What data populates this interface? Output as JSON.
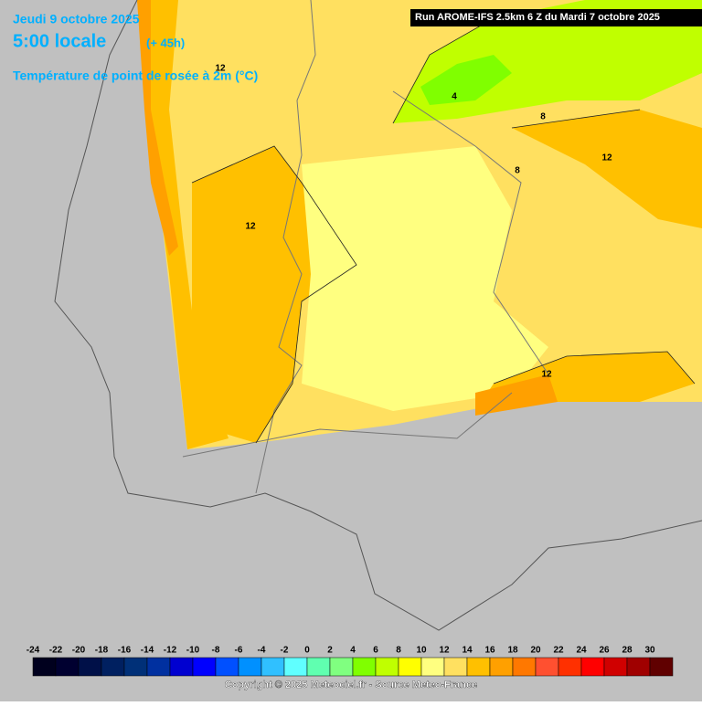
{
  "header": {
    "date": "Jeudi 9 octobre 2025",
    "time": "5:00 locale",
    "lead": "(+ 45h)",
    "parameter": "Température de point de rosée à 2m (°C)",
    "run": "Run AROME-IFS 2.5km 6 Z du Mardi 7 octobre 2025"
  },
  "contour_labels": [
    12,
    4,
    8,
    12,
    8,
    12,
    12
  ],
  "legend": {
    "values": [
      -24,
      -22,
      -20,
      -18,
      -16,
      -14,
      -12,
      -10,
      -8,
      -6,
      -4,
      -2,
      0,
      2,
      4,
      6,
      8,
      10,
      12,
      14,
      16,
      18,
      20,
      22,
      24,
      26,
      28,
      30
    ],
    "colors": [
      "#00001e",
      "#000030",
      "#001048",
      "#002060",
      "#003078",
      "#0030a0",
      "#0000d0",
      "#0000ff",
      "#0050ff",
      "#0090ff",
      "#30c0ff",
      "#60ffff",
      "#60ffb0",
      "#80ff80",
      "#80ff00",
      "#c0ff00",
      "#ffff00",
      "#ffff80",
      "#ffe060",
      "#ffc000",
      "#ffa000",
      "#ff7800",
      "#ff5030",
      "#ff3000",
      "#ff0000",
      "#d00000",
      "#a00000",
      "#600000"
    ]
  },
  "footer": "Copyright © 2025 Meteociel.fr - Source Meteo-France"
}
